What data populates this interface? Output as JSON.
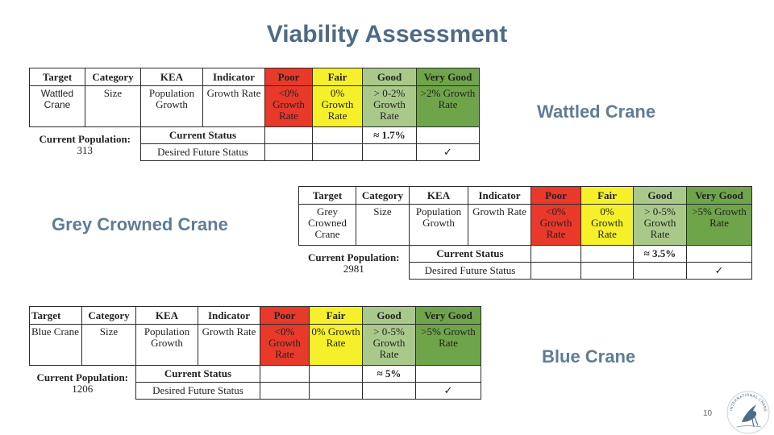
{
  "title": "Viability Assessment",
  "page_number": "10",
  "logo_text": "INTERNATIONAL CRANE FOUNDATION",
  "colors": {
    "poor": "#e8392b",
    "fair": "#f6f02a",
    "good": "#a9c98a",
    "very_good": "#6fa54a",
    "title": "#4f6b85"
  },
  "headers": [
    "Target",
    "Category",
    "KEA",
    "Indicator",
    "Poor",
    "Fair",
    "Good",
    "Very Good"
  ],
  "current_status_label": "Current Status",
  "desired_status_label": "Desired Future Status",
  "current_population_label": "Current Population:",
  "tables": [
    {
      "label": "Wattled Crane",
      "target": "Wattled Crane",
      "category": "Size",
      "kea": "Population Growth",
      "indicator": "Growth Rate",
      "poor": "<0% Growth Rate",
      "fair": "0% Growth Rate",
      "good": "> 0-2% Growth Rate",
      "very_good": ">2% Growth Rate",
      "current_population": "313",
      "current_status_value": "≈ 1.7%",
      "desired_mark": "✓"
    },
    {
      "label": "Grey Crowned Crane",
      "target": "Grey Crowned Crane",
      "category": "Size",
      "kea": "Population Growth",
      "indicator": "Growth Rate",
      "poor": "<0% Growth Rate",
      "fair": "0% Growth Rate",
      "good": "> 0-5% Growth Rate",
      "very_good": ">5% Growth Rate",
      "current_population": "2981",
      "current_status_value": "≈ 3.5%",
      "desired_mark": "✓"
    },
    {
      "label": "Blue Crane",
      "target": "Blue Crane",
      "category": "Size",
      "kea": "Population Growth",
      "indicator": "Growth Rate",
      "poor": "<0% Growth Rate",
      "fair": "0% Growth Rate",
      "good": "> 0-5% Growth Rate",
      "very_good": ">5% Growth Rate",
      "current_population": "1206",
      "current_status_value": "≈ 5%",
      "desired_mark": "✓"
    }
  ]
}
